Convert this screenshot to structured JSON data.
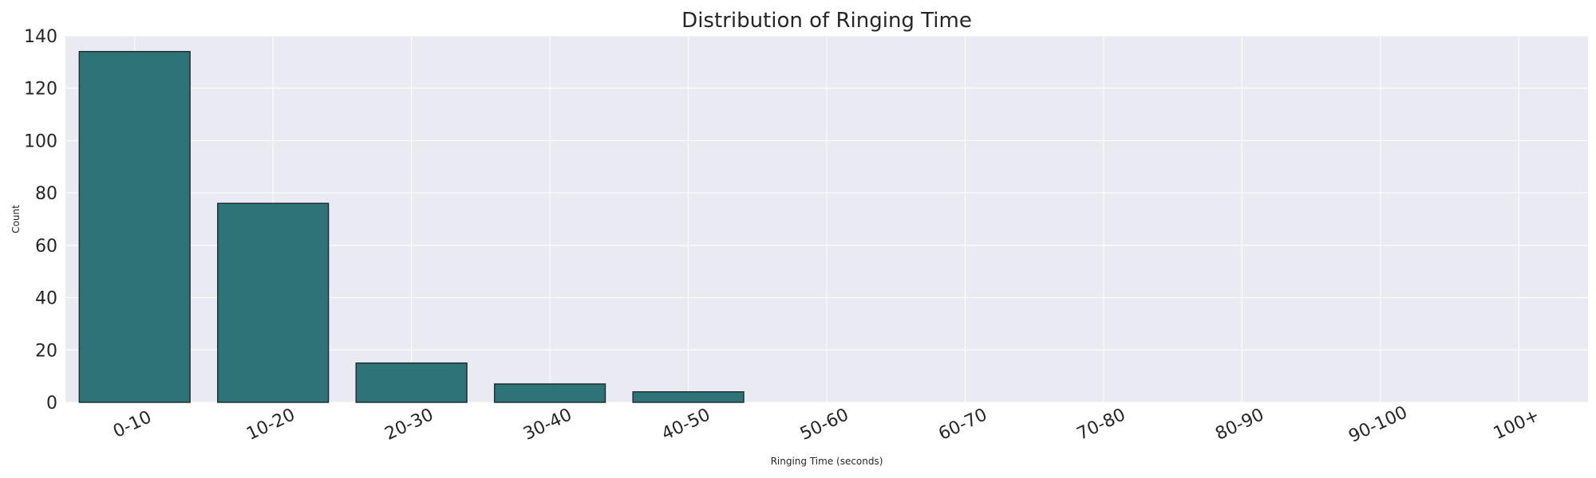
{
  "chart_data": {
    "type": "bar",
    "title": "Distribution of Ringing Time",
    "xlabel": "Ringing Time (seconds)",
    "ylabel": "Count",
    "categories": [
      "0-10",
      "10-20",
      "20-30",
      "30-40",
      "40-50",
      "50-60",
      "60-70",
      "70-80",
      "80-90",
      "90-100",
      "100+"
    ],
    "values": [
      134,
      76,
      15,
      7,
      4,
      0,
      0,
      0,
      0,
      0,
      0
    ],
    "ylim": [
      0,
      140
    ],
    "yticks": [
      "0",
      "20",
      "40",
      "60",
      "80",
      "100",
      "120",
      "140"
    ],
    "grid": true,
    "colors": {
      "bar_fill": "#2e7378",
      "bar_edge": "#1f2f33",
      "plot_background": "#eaeaf2",
      "grid": "#ffffff"
    }
  }
}
